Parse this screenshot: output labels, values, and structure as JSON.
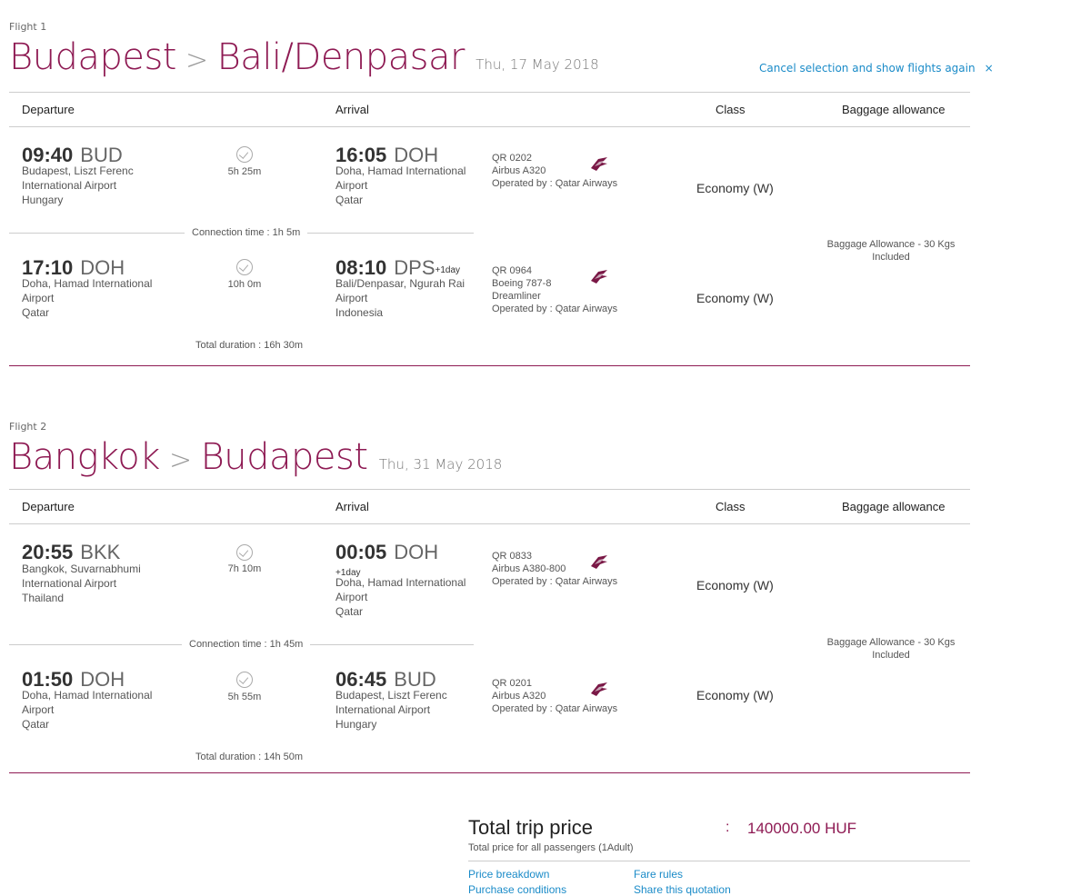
{
  "flights": [
    {
      "label": "Flight 1",
      "origin": "Budapest",
      "destination": "Bali/Denpasar",
      "arrow": ">",
      "date": "Thu, 17 May 2018",
      "cancel_label": "Cancel selection and show flights again",
      "cancel_icon": "×",
      "headers": {
        "departure": "Departure",
        "arrival": "Arrival",
        "class": "Class",
        "baggage": "Baggage allowance"
      },
      "legs": [
        {
          "dep_time": "09:40",
          "dep_code": "BUD",
          "dep_place": [
            "Budapest, Liszt Ferenc",
            "International Airport",
            "Hungary"
          ],
          "duration": "5h 25m",
          "arr_time": "16:05",
          "arr_code": "DOH",
          "arr_suffix": "",
          "arr_place": [
            "Doha, Hamad International",
            "Airport",
            "Qatar"
          ],
          "flight_no": "QR 0202",
          "aircraft": [
            "Airbus A320"
          ],
          "operated": "Operated by : Qatar Airways",
          "class": "Economy (W)"
        },
        {
          "dep_time": "17:10",
          "dep_code": "DOH",
          "dep_place": [
            "Doha, Hamad International",
            "Airport",
            "Qatar"
          ],
          "duration": "10h 0m",
          "arr_time": "08:10",
          "arr_code": "DPS",
          "arr_suffix": "+1day",
          "arr_place": [
            "Bali/Denpasar, Ngurah Rai",
            "Airport",
            "Indonesia"
          ],
          "flight_no": "QR 0964",
          "aircraft": [
            "Boeing 787-8",
            "Dreamliner"
          ],
          "operated": "Operated by : Qatar Airways",
          "class": "Economy (W)"
        }
      ],
      "connection": "Connection time : 1h 5m",
      "baggage": [
        "Baggage Allowance - 30 Kgs",
        "Included"
      ],
      "total_duration": "Total duration : 16h 30m"
    },
    {
      "label": "Flight 2",
      "origin": "Bangkok",
      "destination": "Budapest",
      "arrow": ">",
      "date": "Thu, 31 May 2018",
      "headers": {
        "departure": "Departure",
        "arrival": "Arrival",
        "class": "Class",
        "baggage": "Baggage allowance"
      },
      "legs": [
        {
          "dep_time": "20:55",
          "dep_code": "BKK",
          "dep_place": [
            "Bangkok, Suvarnabhumi",
            "International Airport",
            "Thailand"
          ],
          "duration": "7h 10m",
          "arr_time": "00:05",
          "arr_code": "DOH",
          "arr_suffix": "+1day",
          "arr_place": [
            "Doha, Hamad International",
            "Airport",
            "Qatar"
          ],
          "flight_no": "QR 0833",
          "aircraft": [
            "Airbus A380-800"
          ],
          "operated": "Operated by : Qatar Airways",
          "class": "Economy (W)"
        },
        {
          "dep_time": "01:50",
          "dep_code": "DOH",
          "dep_place": [
            "Doha, Hamad International",
            "Airport",
            "Qatar"
          ],
          "duration": "5h 55m",
          "arr_time": "06:45",
          "arr_code": "BUD",
          "arr_suffix": "",
          "arr_place": [
            "Budapest, Liszt Ferenc",
            "International Airport",
            "Hungary"
          ],
          "flight_no": "QR 0201",
          "aircraft": [
            "Airbus A320"
          ],
          "operated": "Operated by : Qatar Airways",
          "class": "Economy (W)"
        }
      ],
      "connection": "Connection time : 1h 45m",
      "baggage": [
        "Baggage Allowance - 30 Kgs",
        "Included"
      ],
      "total_duration": "Total duration : 14h 50m"
    }
  ],
  "total": {
    "title": "Total trip price",
    "colon": ":",
    "price": "140000.00 HUF",
    "subtitle": "Total price for all passengers (1Adult)",
    "links": {
      "price_breakdown": "Price breakdown",
      "fare_rules": "Fare rules",
      "purchase_conditions": "Purchase conditions",
      "share": "Share this quotation"
    }
  },
  "colors": {
    "accent": "#8e1a53",
    "link": "#1a8bc8"
  },
  "icons": {
    "duration": "clock-check-icon",
    "airline": "qatar-airways-logo-icon",
    "cancel": "close-icon"
  }
}
